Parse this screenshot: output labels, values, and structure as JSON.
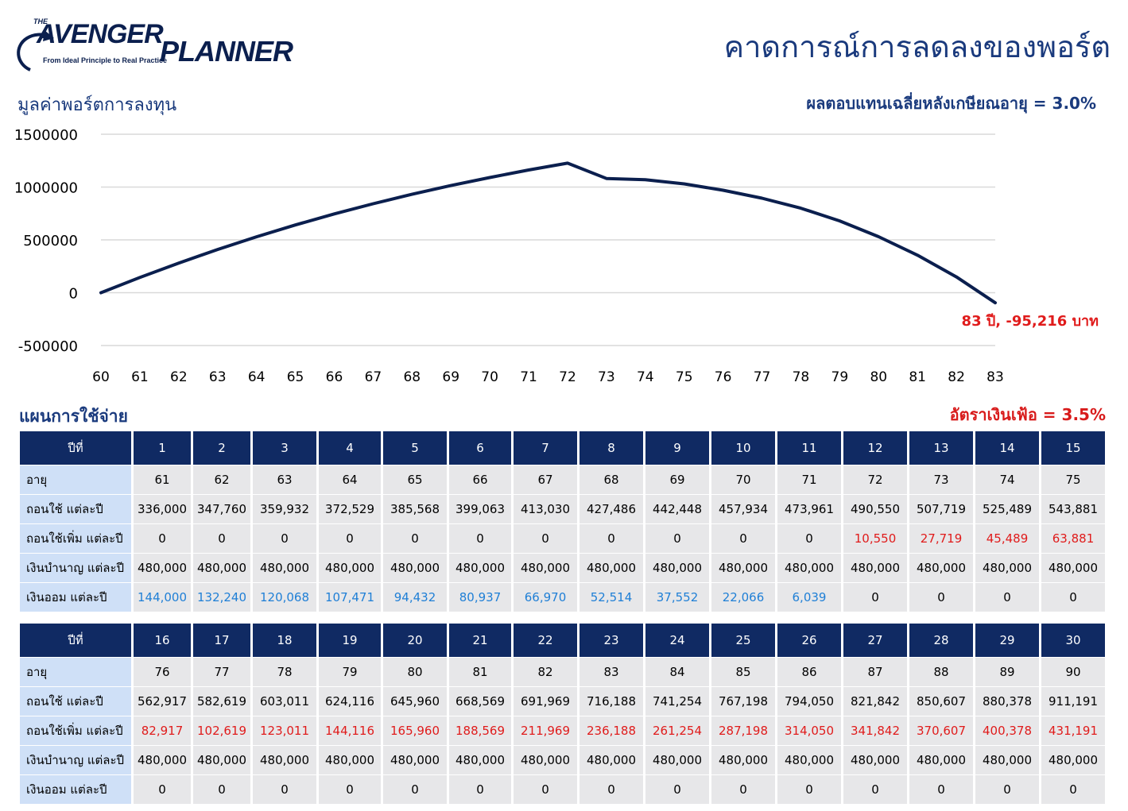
{
  "logo": {
    "the": "THE",
    "avenger": "AVENGER",
    "planner": "PLANNER",
    "tagline": "From Ideal Principle to Real Practice"
  },
  "page_title": "คาดการณ์การลดลงของพอร์ต",
  "chart_title": "มูลค่าพอร์ตการลงทุน",
  "return_note": "ผลตอบแทนเฉลี่ยหลังเกษียณอายุ = 3.0%",
  "plan_title": "แผนการใช้จ่าย",
  "inflation_note": "อัตราเงินเฟ้อ = 3.5%",
  "colors": {
    "navy": "#102a63",
    "red": "#e01b1b",
    "blue": "#1f7fd6",
    "light": "#cfe0f7"
  },
  "chart_data": {
    "type": "line",
    "title": "มูลค่าพอร์ตการลงทุน",
    "xlabel": "",
    "ylabel": "",
    "x": [
      60,
      61,
      62,
      63,
      64,
      65,
      66,
      67,
      68,
      69,
      70,
      71,
      72,
      73,
      74,
      75,
      76,
      77,
      78,
      79,
      80,
      81,
      82,
      83
    ],
    "y": [
      0,
      144000,
      280560,
      409045,
      529394,
      641514,
      745696,
      842254,
      931560,
      1014075,
      1090553,
      1161325,
      1226604,
      1081200,
      1070000,
      1030000,
      970000,
      895000,
      800000,
      680000,
      530000,
      355000,
      150000,
      -95216
    ],
    "ylim": [
      -500000,
      1500000
    ],
    "yticks": [
      1500000,
      1000000,
      500000,
      0,
      -500000
    ],
    "grid": true,
    "legend": "none",
    "end_label": "83 ปี, -95,216 บาท"
  },
  "tables": [
    {
      "rows": [
        {
          "label": "ปีที่",
          "values": [
            "1",
            "2",
            "3",
            "4",
            "5",
            "6",
            "7",
            "8",
            "9",
            "10",
            "11",
            "12",
            "13",
            "14",
            "15"
          ]
        },
        {
          "label": "อายุ",
          "values": [
            "61",
            "62",
            "63",
            "64",
            "65",
            "66",
            "67",
            "68",
            "69",
            "70",
            "71",
            "72",
            "73",
            "74",
            "75"
          ]
        },
        {
          "label": "ถอนใช้ แต่ละปี",
          "values": [
            "336,000",
            "347,760",
            "359,932",
            "372,529",
            "385,568",
            "399,063",
            "413,030",
            "427,486",
            "442,448",
            "457,934",
            "473,961",
            "490,550",
            "507,719",
            "525,489",
            "543,881"
          ]
        },
        {
          "label": "ถอนใช้เพิ่ม แต่ละปี",
          "values": [
            "0",
            "0",
            "0",
            "0",
            "0",
            "0",
            "0",
            "0",
            "0",
            "0",
            "0",
            "10,550",
            "27,719",
            "45,489",
            "63,881"
          ]
        },
        {
          "label": "เงินบำนาญ แต่ละปี",
          "values": [
            "480,000",
            "480,000",
            "480,000",
            "480,000",
            "480,000",
            "480,000",
            "480,000",
            "480,000",
            "480,000",
            "480,000",
            "480,000",
            "480,000",
            "480,000",
            "480,000",
            "480,000"
          ]
        },
        {
          "label": "เงินออม แต่ละปี",
          "values": [
            "144,000",
            "132,240",
            "120,068",
            "107,471",
            "94,432",
            "80,937",
            "66,970",
            "52,514",
            "37,552",
            "22,066",
            "6,039",
            "0",
            "0",
            "0",
            "0"
          ]
        }
      ]
    },
    {
      "rows": [
        {
          "label": "ปีที่",
          "values": [
            "16",
            "17",
            "18",
            "19",
            "20",
            "21",
            "22",
            "23",
            "24",
            "25",
            "26",
            "27",
            "28",
            "29",
            "30"
          ]
        },
        {
          "label": "อายุ",
          "values": [
            "76",
            "77",
            "78",
            "79",
            "80",
            "81",
            "82",
            "83",
            "84",
            "85",
            "86",
            "87",
            "88",
            "89",
            "90"
          ]
        },
        {
          "label": "ถอนใช้ แต่ละปี",
          "values": [
            "562,917",
            "582,619",
            "603,011",
            "624,116",
            "645,960",
            "668,569",
            "691,969",
            "716,188",
            "741,254",
            "767,198",
            "794,050",
            "821,842",
            "850,607",
            "880,378",
            "911,191"
          ]
        },
        {
          "label": "ถอนใช้เพิ่ม แต่ละปี",
          "values": [
            "82,917",
            "102,619",
            "123,011",
            "144,116",
            "165,960",
            "188,569",
            "211,969",
            "236,188",
            "261,254",
            "287,198",
            "314,050",
            "341,842",
            "370,607",
            "400,378",
            "431,191"
          ]
        },
        {
          "label": "เงินบำนาญ แต่ละปี",
          "values": [
            "480,000",
            "480,000",
            "480,000",
            "480,000",
            "480,000",
            "480,000",
            "480,000",
            "480,000",
            "480,000",
            "480,000",
            "480,000",
            "480,000",
            "480,000",
            "480,000",
            "480,000"
          ]
        },
        {
          "label": "เงินออม แต่ละปี",
          "values": [
            "0",
            "0",
            "0",
            "0",
            "0",
            "0",
            "0",
            "0",
            "0",
            "0",
            "0",
            "0",
            "0",
            "0",
            "0"
          ]
        }
      ]
    }
  ]
}
